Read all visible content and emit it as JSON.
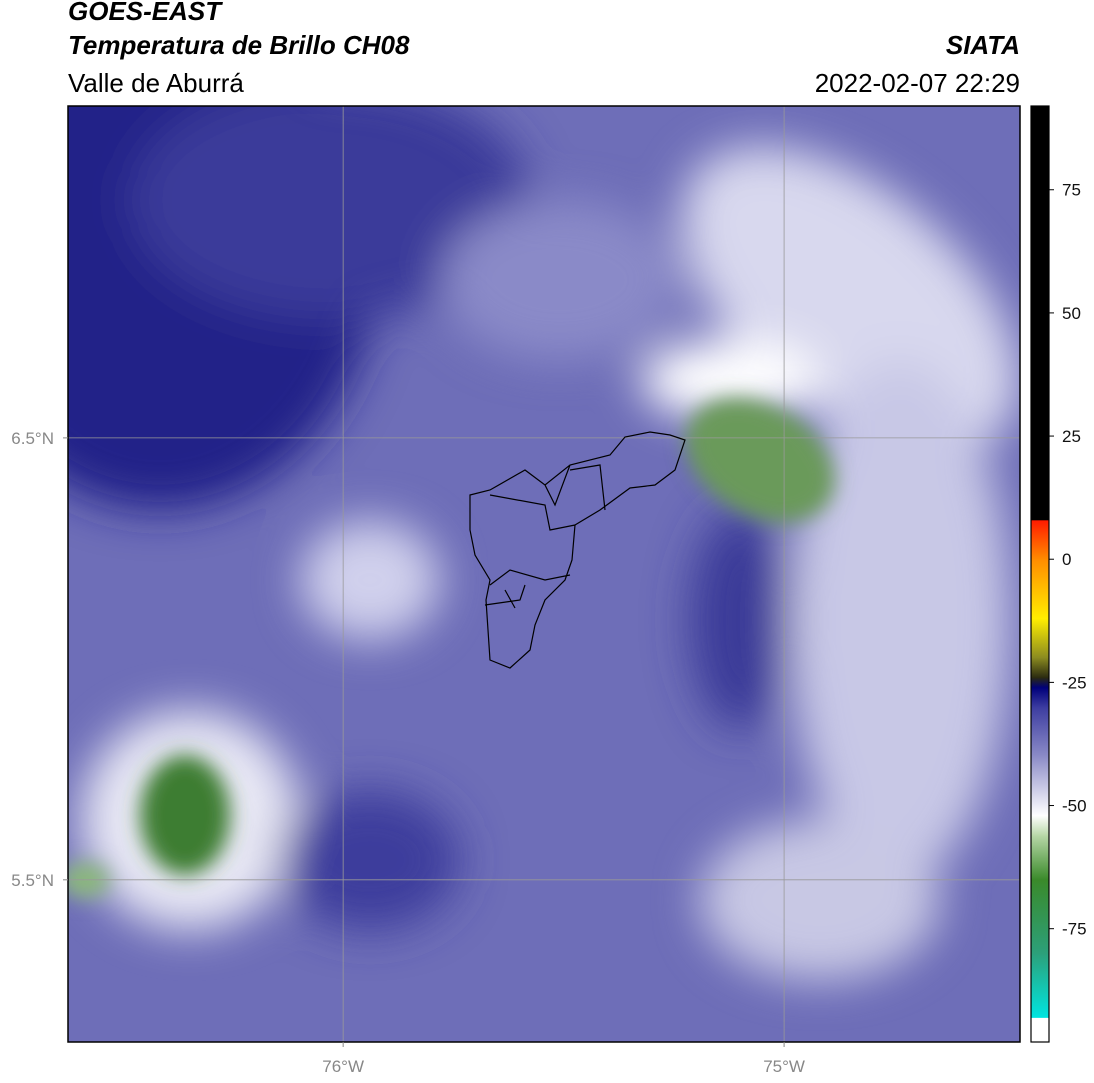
{
  "header": {
    "title": "GOES-EAST",
    "subtitle": "Temperatura de Brillo CH08",
    "region": "Valle de Aburrá",
    "source": "SIATA",
    "datetime": "2022-02-07 22:29"
  },
  "map": {
    "xlim": [
      -76.624,
      -74.465
    ],
    "ylim": [
      5.133,
      7.251
    ],
    "xticks": [
      {
        "value": -76,
        "label": "76°W"
      },
      {
        "value": -75,
        "label": "75°W"
      }
    ],
    "yticks": [
      {
        "value": 6.5,
        "label": "6.5°N"
      },
      {
        "value": 5.5,
        "label": "5.5°N"
      }
    ],
    "grid": true
  },
  "colorbar": {
    "lim": [
      -98,
      92
    ],
    "ticks": [
      75,
      50,
      25,
      0,
      -25,
      -50,
      -75
    ],
    "stops": [
      {
        "value": -98,
        "color": "#ffffff"
      },
      {
        "value": -93,
        "color": "#ffffff"
      },
      {
        "value": -93,
        "color": "#00e5e0"
      },
      {
        "value": -80,
        "color": "#2ca07a"
      },
      {
        "value": -65,
        "color": "#3a8a2a"
      },
      {
        "value": -56,
        "color": "#b8d8a8"
      },
      {
        "value": -52,
        "color": "#ffffff"
      },
      {
        "value": -40,
        "color": "#8c8cc8"
      },
      {
        "value": -30,
        "color": "#3c3ca0"
      },
      {
        "value": -26,
        "color": "#00007a"
      },
      {
        "value": -24,
        "color": "#2a2a10"
      },
      {
        "value": -20,
        "color": "#8a8a20"
      },
      {
        "value": -12,
        "color": "#ffee00"
      },
      {
        "value": 0,
        "color": "#ff8c00"
      },
      {
        "value": 8,
        "color": "#ff1a00"
      },
      {
        "value": 8,
        "color": "#000000"
      },
      {
        "value": 92,
        "color": "#000000"
      }
    ]
  }
}
